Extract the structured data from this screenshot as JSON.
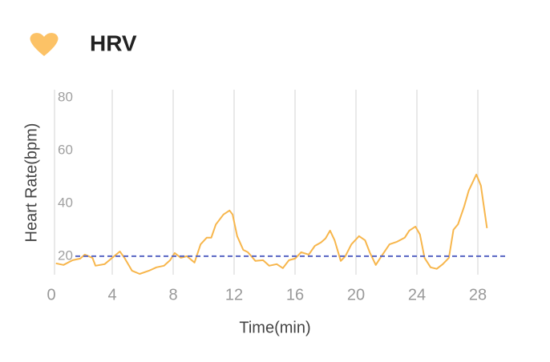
{
  "chart_data": {
    "type": "line",
    "title": "HRV",
    "x_label": "Time(min)",
    "y_label": "Heart Rate(bpm)",
    "x": [
      0.3,
      0.8,
      1.4,
      1.9,
      2.2,
      2.7,
      2.9,
      3.5,
      4,
      4.5,
      4.8,
      5.3,
      5.8,
      6.4,
      6.9,
      7.4,
      7.8,
      8.1,
      8.5,
      8.9,
      9.4,
      9.8,
      10.2,
      10.5,
      10.8,
      11.3,
      11.7,
      11.9,
      12.2,
      12.6,
      12.9,
      13.4,
      13.9,
      14.3,
      14.8,
      15.2,
      15.6,
      16,
      16.4,
      16.9,
      17.3,
      17.7,
      18,
      18.3,
      18.6,
      19,
      19.3,
      19.7,
      20.2,
      20.6,
      20.9,
      21.3,
      21.6,
      22.2,
      22.7,
      23.2,
      23.5,
      23.9,
      24.2,
      24.5,
      24.9,
      25.3,
      25.7,
      26.1,
      26.4,
      26.7,
      27.1,
      27.4,
      27.9,
      28.2,
      28.6
    ],
    "values": [
      17.3,
      16.7,
      18.5,
      19.1,
      20.6,
      19.4,
      16.4,
      17,
      19.4,
      21.8,
      19.4,
      14.5,
      13.3,
      14.5,
      15.8,
      16.4,
      18.5,
      21.2,
      19.4,
      20,
      17.6,
      24.5,
      27,
      27,
      32,
      35.8,
      37.3,
      35.8,
      27.6,
      22.4,
      21.5,
      18.2,
      18.5,
      16.4,
      17,
      15.5,
      18.5,
      19.1,
      21.5,
      20.6,
      23.9,
      25.2,
      26.7,
      29.7,
      26,
      18.2,
      20,
      24.5,
      27.6,
      26,
      21.5,
      16.7,
      19.4,
      24.5,
      25.5,
      27,
      29.7,
      31.2,
      28.2,
      19.4,
      15.8,
      15.2,
      17,
      19.4,
      30,
      32.1,
      38.8,
      44.8,
      50.9,
      46.7,
      30.6
    ],
    "color": "#f7b64c",
    "xlim": [
      0,
      30
    ],
    "xticks": [
      0,
      4,
      8,
      12,
      16,
      20,
      24,
      28
    ],
    "ylim": [
      13,
      83
    ],
    "yticks": [
      20,
      40,
      60,
      80
    ],
    "grid": "x",
    "reference_line": {
      "value": 20,
      "color": "#5866c4"
    }
  }
}
